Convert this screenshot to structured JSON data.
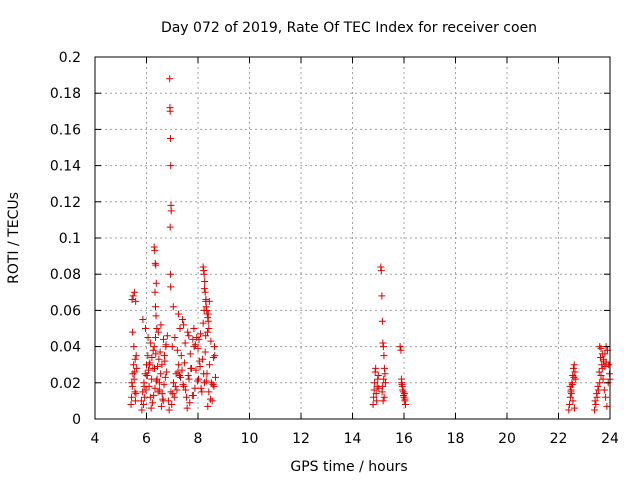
{
  "chart_data": {
    "type": "scatter",
    "title": "Day 072 of 2019, Rate Of TEC Index for receiver coen",
    "xlabel": "GPS time / hours",
    "ylabel": "ROTI / TECUs",
    "xlim": [
      4,
      24
    ],
    "ylim": [
      0,
      0.2
    ],
    "grid": true,
    "marker": "+",
    "color": "#e00000",
    "x_ticks": [
      4,
      6,
      8,
      10,
      12,
      14,
      16,
      18,
      20,
      22,
      24
    ],
    "y_ticks": [
      0,
      0.02,
      0.04,
      0.06,
      0.08,
      0.1,
      0.12,
      0.14,
      0.16,
      0.18,
      0.2
    ],
    "x_tick_labels": [
      "4",
      "6",
      "8",
      "10",
      "12",
      "14",
      "16",
      "18",
      "20",
      "22",
      "24"
    ],
    "y_tick_labels": [
      "0",
      "0.02",
      "0.04",
      "0.06",
      "0.08",
      "0.1",
      "0.12",
      "0.14",
      "0.16",
      "0.18",
      "0.2"
    ],
    "series": [
      {
        "name": "ROTI",
        "x": [
          5.4,
          5.42,
          5.45,
          5.47,
          5.5,
          5.52,
          5.55,
          5.57,
          5.6,
          5.62,
          5.44,
          5.48,
          5.53,
          5.58,
          5.46,
          5.51,
          5.56,
          5.43,
          5.54,
          5.59,
          5.8,
          5.85,
          5.9,
          5.95,
          6.0,
          6.05,
          6.1,
          6.15,
          6.2,
          6.25,
          6.3,
          6.35,
          6.4,
          6.45,
          6.5,
          6.55,
          6.6,
          6.65,
          6.7,
          6.75,
          5.82,
          5.88,
          5.93,
          5.98,
          6.03,
          6.08,
          6.13,
          6.18,
          6.23,
          6.28,
          6.33,
          6.38,
          6.43,
          6.48,
          6.53,
          6.58,
          6.63,
          6.68,
          6.73,
          6.78,
          5.86,
          5.96,
          6.06,
          6.16,
          6.26,
          6.36,
          6.46,
          6.56,
          6.66,
          6.76,
          5.91,
          6.01,
          6.11,
          6.21,
          6.31,
          6.41,
          6.51,
          6.61,
          6.71,
          6.81,
          6.3,
          6.32,
          6.34,
          6.36,
          6.38,
          6.33,
          6.35,
          6.37,
          6.9,
          6.91,
          6.92,
          6.93,
          6.94,
          6.95,
          6.96,
          6.92,
          6.93,
          6.94,
          6.85,
          6.95,
          7.05,
          7.15,
          7.25,
          7.35,
          7.45,
          7.55,
          7.65,
          7.75,
          7.85,
          7.95,
          8.05,
          8.15,
          8.25,
          8.35,
          8.45,
          8.55,
          8.65,
          6.88,
          6.98,
          7.08,
          7.18,
          7.28,
          7.38,
          7.48,
          7.58,
          7.68,
          7.78,
          7.88,
          7.98,
          8.08,
          8.18,
          8.28,
          8.38,
          8.48,
          8.58,
          8.68,
          7.0,
          7.1,
          7.2,
          7.3,
          7.4,
          7.5,
          7.6,
          7.7,
          7.8,
          7.9,
          8.0,
          8.1,
          8.2,
          8.3,
          8.4,
          8.5,
          8.6,
          7.02,
          7.12,
          7.22,
          7.32,
          7.42,
          7.52,
          7.62,
          7.72,
          7.82,
          7.92,
          8.02,
          8.12,
          8.22,
          8.32,
          8.42,
          8.52,
          8.62,
          7.04,
          7.24,
          7.44,
          7.64,
          7.84,
          8.04,
          8.24,
          8.44,
          8.64,
          8.2,
          8.22,
          8.24,
          8.26,
          8.28,
          8.3,
          8.32,
          8.34,
          8.36,
          8.38,
          8.4,
          8.42,
          8.25,
          8.31,
          8.37,
          14.8,
          14.82,
          14.84,
          14.86,
          14.88,
          14.9,
          14.92,
          14.94,
          14.96,
          14.98,
          15.0,
          15.02,
          15.1,
          15.12,
          15.14,
          15.16,
          15.18,
          15.2,
          15.22,
          15.24,
          15.26,
          15.28,
          15.15,
          15.19,
          15.23,
          15.17,
          15.21,
          15.85,
          15.88,
          15.91,
          15.94,
          15.97,
          16.0,
          16.03,
          16.06,
          15.9,
          15.95,
          16.02,
          15.92,
          15.98,
          16.04,
          22.4,
          22.43,
          22.46,
          22.49,
          22.52,
          22.55,
          22.58,
          22.61,
          22.64,
          22.67,
          22.45,
          22.5,
          22.56,
          22.62,
          22.48,
          22.54,
          22.6,
          23.4,
          23.45,
          23.5,
          23.55,
          23.6,
          23.65,
          23.7,
          23.75,
          23.8,
          23.85,
          23.9,
          23.95,
          24.0,
          23.42,
          23.48,
          23.53,
          23.58,
          23.63,
          23.68,
          23.73,
          23.78,
          23.83,
          23.88,
          23.93,
          23.98,
          23.6,
          23.65,
          23.7,
          23.75,
          23.8,
          23.85
        ],
        "y": [
          0.008,
          0.012,
          0.018,
          0.025,
          0.03,
          0.022,
          0.015,
          0.01,
          0.035,
          0.028,
          0.066,
          0.068,
          0.07,
          0.065,
          0.048,
          0.04,
          0.033,
          0.02,
          0.026,
          0.014,
          0.01,
          0.015,
          0.02,
          0.025,
          0.03,
          0.035,
          0.018,
          0.012,
          0.022,
          0.028,
          0.04,
          0.045,
          0.05,
          0.015,
          0.02,
          0.025,
          0.03,
          0.01,
          0.035,
          0.04,
          0.005,
          0.008,
          0.012,
          0.016,
          0.024,
          0.027,
          0.031,
          0.006,
          0.009,
          0.013,
          0.017,
          0.021,
          0.029,
          0.033,
          0.037,
          0.007,
          0.011,
          0.019,
          0.023,
          0.026,
          0.055,
          0.05,
          0.045,
          0.042,
          0.038,
          0.036,
          0.048,
          0.052,
          0.044,
          0.041,
          0.018,
          0.024,
          0.03,
          0.034,
          0.028,
          0.022,
          0.016,
          0.014,
          0.032,
          0.046,
          0.095,
          0.093,
          0.086,
          0.085,
          0.075,
          0.07,
          0.062,
          0.057,
          0.188,
          0.172,
          0.17,
          0.155,
          0.14,
          0.118,
          0.115,
          0.106,
          0.08,
          0.073,
          0.01,
          0.015,
          0.02,
          0.025,
          0.03,
          0.035,
          0.018,
          0.012,
          0.022,
          0.028,
          0.04,
          0.045,
          0.032,
          0.015,
          0.02,
          0.025,
          0.03,
          0.01,
          0.035,
          0.005,
          0.008,
          0.012,
          0.016,
          0.024,
          0.027,
          0.031,
          0.006,
          0.009,
          0.013,
          0.017,
          0.021,
          0.029,
          0.033,
          0.037,
          0.007,
          0.011,
          0.019,
          0.023,
          0.04,
          0.045,
          0.038,
          0.05,
          0.055,
          0.042,
          0.048,
          0.036,
          0.044,
          0.041,
          0.039,
          0.047,
          0.053,
          0.046,
          0.058,
          0.043,
          0.034,
          0.014,
          0.018,
          0.026,
          0.023,
          0.019,
          0.016,
          0.024,
          0.028,
          0.013,
          0.027,
          0.022,
          0.017,
          0.025,
          0.021,
          0.015,
          0.02,
          0.018,
          0.062,
          0.058,
          0.052,
          0.046,
          0.05,
          0.044,
          0.06,
          0.065,
          0.04,
          0.084,
          0.082,
          0.08,
          0.076,
          0.07,
          0.065,
          0.062,
          0.06,
          0.058,
          0.056,
          0.054,
          0.05,
          0.072,
          0.066,
          0.048,
          0.008,
          0.012,
          0.016,
          0.02,
          0.026,
          0.028,
          0.014,
          0.01,
          0.018,
          0.022,
          0.024,
          0.017,
          0.084,
          0.082,
          0.068,
          0.054,
          0.042,
          0.04,
          0.035,
          0.028,
          0.025,
          0.02,
          0.015,
          0.01,
          0.012,
          0.018,
          0.022,
          0.04,
          0.038,
          0.02,
          0.018,
          0.015,
          0.012,
          0.01,
          0.008,
          0.022,
          0.016,
          0.014,
          0.019,
          0.013,
          0.011,
          0.005,
          0.008,
          0.012,
          0.016,
          0.02,
          0.024,
          0.028,
          0.03,
          0.026,
          0.022,
          0.018,
          0.014,
          0.01,
          0.006,
          0.015,
          0.019,
          0.023,
          0.005,
          0.008,
          0.012,
          0.016,
          0.02,
          0.024,
          0.028,
          0.032,
          0.036,
          0.04,
          0.038,
          0.03,
          0.022,
          0.01,
          0.014,
          0.018,
          0.026,
          0.034,
          0.03,
          0.022,
          0.016,
          0.012,
          0.007,
          0.02,
          0.025,
          0.04,
          0.039,
          0.036,
          0.033,
          0.029,
          0.031
        ]
      }
    ]
  }
}
